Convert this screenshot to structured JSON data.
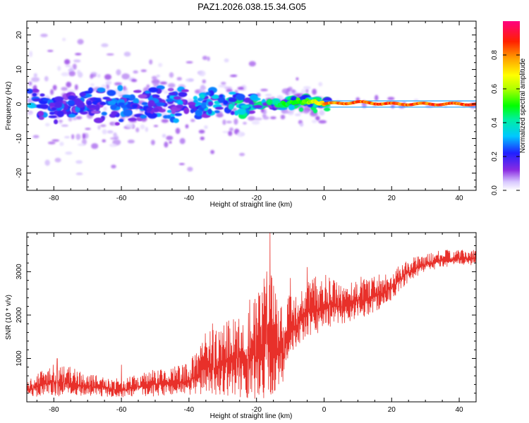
{
  "title": "PAZ1.2026.038.15.34.G05",
  "chart_data": [
    {
      "type": "heatmap",
      "title": "PAZ1.2026.038.15.34.G05",
      "xlabel": "Height of straight line (km)",
      "ylabel": "Frequency (Hz)",
      "xlim": [
        -88,
        45
      ],
      "ylim": [
        -25,
        24
      ],
      "xticks": [
        -80,
        -60,
        -40,
        -20,
        0,
        20,
        40
      ],
      "yticks": [
        -20,
        -10,
        0,
        10,
        20
      ],
      "xtick_labels": [
        "-80",
        "-60",
        "-40",
        "-20",
        "0",
        "20",
        "40"
      ],
      "ytick_labels": [
        "-20",
        "-10",
        "0",
        "10",
        "20"
      ],
      "colorbar": {
        "label": "Normalized spectral amplitude",
        "range": [
          0.0,
          1.0
        ],
        "ticks": [
          0.0,
          0.2,
          0.4,
          0.6,
          0.8
        ],
        "tick_labels": [
          "0.0",
          "0.2",
          "0.4",
          "0.6",
          "0.8"
        ],
        "colormap": "rainbow (white-violet-blue-cyan-green-yellow-orange-red-magenta)"
      },
      "signal_track": {
        "description": "narrowband tone near 0 Hz; diffuse scatter below -20 km, strong steady tone above 0 km",
        "points": [
          {
            "x": -88,
            "f": 1.0,
            "amp": 0.25
          },
          {
            "x": -80,
            "f": -1.5,
            "amp": 0.2
          },
          {
            "x": -70,
            "f": 0.5,
            "amp": 0.18
          },
          {
            "x": -60,
            "f": -0.5,
            "amp": 0.2
          },
          {
            "x": -50,
            "f": 0.5,
            "amp": 0.22
          },
          {
            "x": -40,
            "f": -0.8,
            "amp": 0.25
          },
          {
            "x": -30,
            "f": 0.3,
            "amp": 0.3
          },
          {
            "x": -20,
            "f": -0.5,
            "amp": 0.4
          },
          {
            "x": -12,
            "f": 0.3,
            "amp": 0.5
          },
          {
            "x": -5,
            "f": 0.8,
            "amp": 0.6
          },
          {
            "x": 0,
            "f": 0.0,
            "amp": 0.85
          },
          {
            "x": 10,
            "f": 0.5,
            "amp": 0.9
          },
          {
            "x": 20,
            "f": 0.0,
            "amp": 0.9
          },
          {
            "x": 45,
            "f": 0.0,
            "amp": 0.92
          }
        ]
      }
    },
    {
      "type": "line",
      "xlabel": "Height of straight line (km)",
      "ylabel": "SNR (10 * v/v)",
      "xlim": [
        -88,
        45
      ],
      "ylim": [
        0,
        3900
      ],
      "xticks": [
        -80,
        -60,
        -40,
        -20,
        0,
        20,
        40
      ],
      "yticks": [
        1000,
        2000,
        3000
      ],
      "xtick_labels": [
        "-80",
        "-60",
        "-40",
        "-20",
        "0",
        "20",
        "40"
      ],
      "ytick_labels": [
        "1000",
        "2000",
        "3000"
      ],
      "series": [
        {
          "name": "SNR",
          "color": "#e8302a",
          "envelope": {
            "x": [
              -88,
              -80,
              -70,
              -60,
              -50,
              -40,
              -35,
              -30,
              -25,
              -20,
              -17,
              -15,
              -12,
              -10,
              -8,
              -5,
              -2,
              0,
              5,
              10,
              15,
              20,
              25,
              30,
              35,
              40,
              45
            ],
            "lo": [
              100,
              120,
              150,
              100,
              130,
              160,
              180,
              150,
              100,
              50,
              80,
              0,
              400,
              1100,
              1300,
              1400,
              1550,
              1700,
              1800,
              1900,
              2050,
              2350,
              2750,
              3000,
              3100,
              3150,
              3150
            ],
            "hi": [
              500,
              950,
              650,
              520,
              750,
              900,
              1600,
              1800,
              2200,
              2400,
              3000,
              3000,
              2000,
              2600,
              2400,
              2850,
              2900,
              2950,
              2700,
              2900,
              2950,
              3000,
              3300,
              3400,
              3500,
              3500,
              3500
            ]
          },
          "spikes": [
            {
              "x": -79,
              "y": 1000
            },
            {
              "x": -60,
              "y": 850
            },
            {
              "x": -33,
              "y": 1800
            },
            {
              "x": -22,
              "y": 2350
            },
            {
              "x": -17,
              "y": 3000
            },
            {
              "x": -16,
              "y": 3900
            },
            {
              "x": -10,
              "y": 2850
            },
            {
              "x": -5,
              "y": 3100
            }
          ]
        }
      ]
    }
  ]
}
